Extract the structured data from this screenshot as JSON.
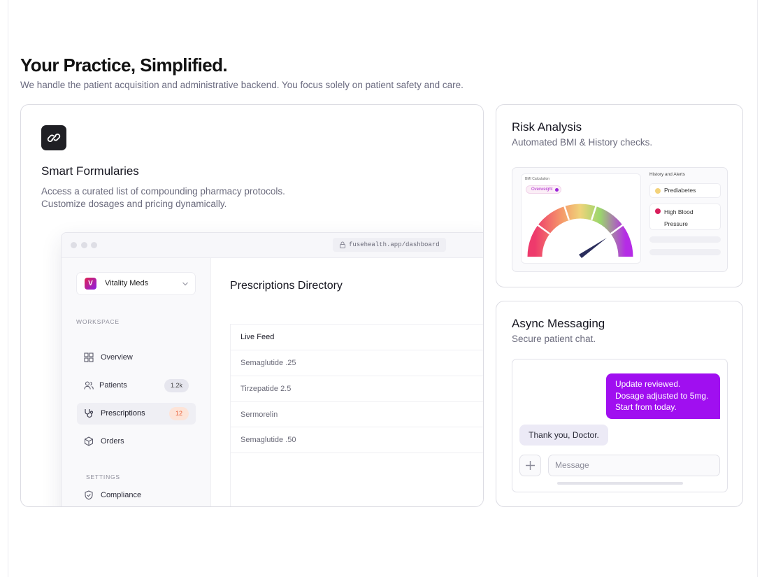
{
  "header": {
    "title": "Your Practice, Simplified.",
    "subtitle": "We handle the patient acquisition and administrative backend. You focus solely on patient safety and care."
  },
  "formularies": {
    "title": "Smart Formularies",
    "description": [
      "Access a curated list of compounding pharmacy protocols.",
      "Customize dosages and pricing dynamically."
    ],
    "dashboard": {
      "url": "fusehealth.app/dashboard",
      "brand_initial": "V",
      "brand": "Vitality Meds",
      "workspace_label": "WORKSPACE",
      "nav": [
        {
          "label": "Overview"
        },
        {
          "label": "Patients",
          "badge": "1.2k"
        },
        {
          "label": "Prescriptions",
          "badge": "12"
        },
        {
          "label": "Orders"
        }
      ],
      "settings_label": "SETTINGS",
      "settings_nav": [
        "Compliance"
      ],
      "page_title": "Prescriptions Directory",
      "table_header": "Live Feed",
      "rows": [
        "Semaglutide .25",
        "Tirzepatide 2.5",
        "Sermorelin",
        "Semaglutide .50"
      ]
    }
  },
  "risk": {
    "title": "Risk Analysis",
    "subtitle": "Automated BMI & History checks.",
    "gauge_label": "BMI Calculation",
    "status": "Overweight",
    "history_title": "History and Alerts",
    "alerts": [
      "Prediabetes",
      "High Blood Pressure"
    ]
  },
  "messaging": {
    "title": "Async Messaging",
    "subtitle": "Secure patient chat.",
    "outgoing": [
      "Update reviewed.",
      "Dosage adjusted to 5mg.",
      "Start from today."
    ],
    "incoming": "Thank you, Doctor.",
    "placeholder": "Message"
  }
}
